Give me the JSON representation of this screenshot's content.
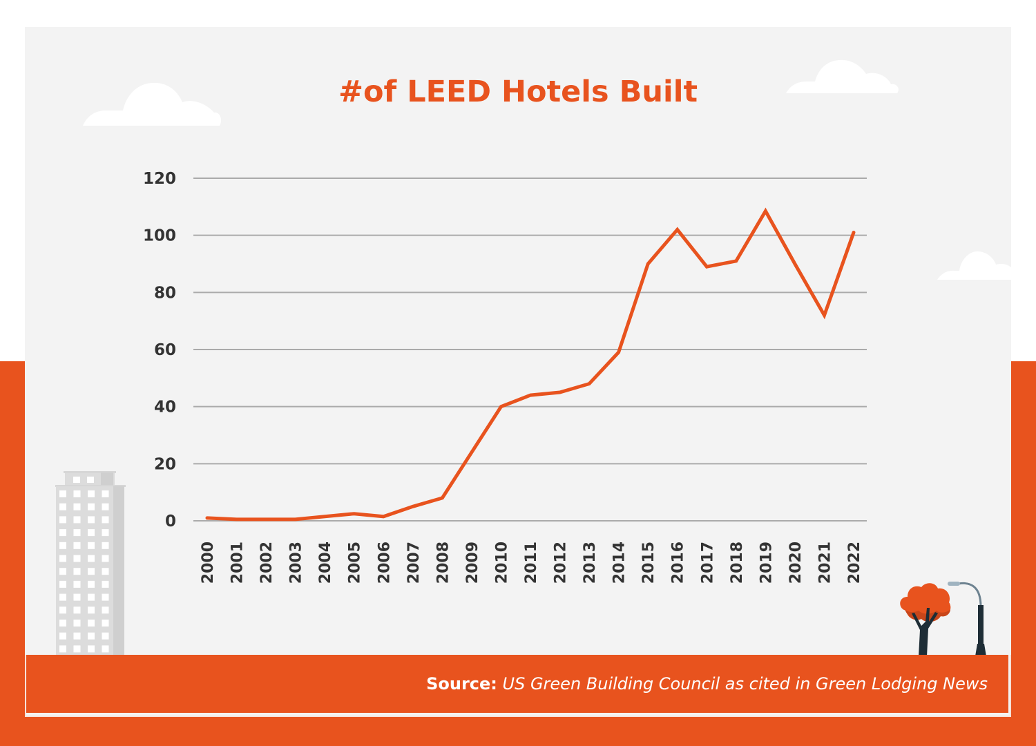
{
  "colors": {
    "accent": "#e8531e",
    "panel_background": "#f3f3f3",
    "gridline": "#aaaaaa",
    "tick_text": "#333333",
    "building": "#dcdcdc",
    "tree_trunk": "#1e2d36"
  },
  "footer": {
    "source_label": "Source:",
    "source_text": "US Green Building Council as cited in Green Lodging News"
  },
  "decorations": [
    "cloud-icon",
    "cloud-icon",
    "cloud-icon",
    "building-icon",
    "tree-icon",
    "street-lamp-icon"
  ],
  "chart_data": {
    "type": "line",
    "title": "#of LEED Hotels Built",
    "xlabel": "",
    "ylabel": "",
    "categories": [
      "2000",
      "2001",
      "2002",
      "2003",
      "2004",
      "2005",
      "2006",
      "2007",
      "2008",
      "2009",
      "2010",
      "2011",
      "2012",
      "2013",
      "2014",
      "2015",
      "2016",
      "2017",
      "2018",
      "2019",
      "2020",
      "2021",
      "2022"
    ],
    "series": [
      {
        "name": "# of LEED Hotels Built",
        "color": "#e8531e",
        "values": [
          1,
          0.5,
          0.5,
          0.5,
          1.5,
          2.5,
          1.5,
          5,
          8,
          24,
          40,
          44,
          45,
          48,
          59,
          90,
          102,
          89,
          91,
          108.5,
          90,
          72,
          101
        ]
      }
    ],
    "ylim": [
      0,
      120
    ],
    "yticks": [
      "0",
      "20",
      "40",
      "60",
      "80",
      "100",
      "120"
    ],
    "ytick_values": [
      0,
      20,
      40,
      60,
      80,
      100,
      120
    ],
    "grid": true,
    "legend": "none",
    "xtick_rotation": "vertical"
  }
}
